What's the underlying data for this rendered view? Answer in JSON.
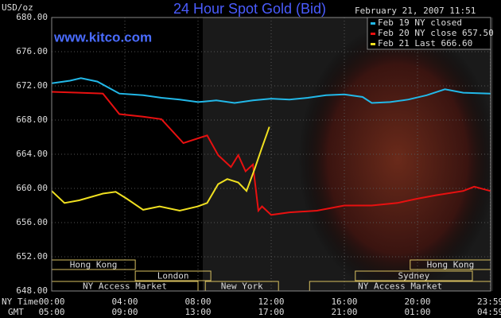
{
  "chart_data": {
    "type": "line",
    "title": "24 Hour Spot Gold (Bid)",
    "subtitle": "February 21, 2007 11:51",
    "y_label": "USD/oz",
    "watermark": "www.kitco.com",
    "x_label": "NY Time",
    "x2_label": "GMT",
    "xlim": [
      0,
      24
    ],
    "ylim": [
      648,
      680
    ],
    "grid": true,
    "legend": "top-right",
    "yticks": [
      {
        "value": 648,
        "label": "648.00"
      },
      {
        "value": 652,
        "label": "652.00"
      },
      {
        "value": 656,
        "label": "656.00"
      },
      {
        "value": 660,
        "label": "660.00"
      },
      {
        "value": 664,
        "label": "664.00"
      },
      {
        "value": 668,
        "label": "668.00"
      },
      {
        "value": 672,
        "label": "672.00"
      },
      {
        "value": 676,
        "label": "676.00"
      },
      {
        "value": 680,
        "label": "680.00"
      }
    ],
    "xticks": [
      {
        "value": 0,
        "label": "00:00"
      },
      {
        "value": 4,
        "label": "04:00"
      },
      {
        "value": 8,
        "label": "08:00"
      },
      {
        "value": 12,
        "label": "12:00"
      },
      {
        "value": 16,
        "label": "16:00"
      },
      {
        "value": 20,
        "label": "20:00"
      },
      {
        "value": 23.98,
        "label": "23:59"
      }
    ],
    "x2ticks": [
      {
        "value": 0,
        "label": "05:00"
      },
      {
        "value": 4,
        "label": "09:00"
      },
      {
        "value": 8,
        "label": "13:00"
      },
      {
        "value": 12,
        "label": "17:00"
      },
      {
        "value": 16,
        "label": "21:00"
      },
      {
        "value": 20,
        "label": "01:00"
      },
      {
        "value": 23.98,
        "label": "04:59"
      }
    ],
    "series": [
      {
        "name": "Feb 19 NY closed",
        "color": "#22b8e8",
        "x": [
          0,
          1,
          1.6,
          2.5,
          3.7,
          5,
          6,
          7,
          8,
          9,
          10,
          11,
          12,
          13,
          14,
          15,
          16,
          17,
          17.5,
          18.5,
          19.5,
          20.5,
          21.5,
          22.5,
          23.98
        ],
        "values": [
          672.3,
          672.6,
          672.9,
          672.5,
          671.1,
          670.9,
          670.6,
          670.4,
          670.1,
          670.3,
          670.0,
          670.3,
          670.5,
          670.4,
          670.6,
          670.9,
          671.0,
          670.7,
          670.0,
          670.1,
          670.4,
          670.9,
          671.6,
          671.2,
          671.1
        ]
      },
      {
        "name": "Feb 20 NY close 657.50",
        "color": "#e81010",
        "x": [
          0,
          1.5,
          2.8,
          3.7,
          5,
          6,
          7.2,
          8.5,
          9.1,
          9.8,
          10.2,
          10.6,
          11,
          11.3,
          11.5,
          12,
          13,
          14.5,
          16,
          17.5,
          18.9,
          20,
          21,
          22.5,
          23.1,
          23.98
        ],
        "values": [
          671.3,
          671.2,
          671.1,
          668.7,
          668.4,
          668.1,
          665.3,
          666.2,
          663.9,
          662.5,
          663.9,
          662.0,
          662.8,
          657.4,
          657.9,
          656.9,
          657.2,
          657.4,
          658.0,
          658.0,
          658.3,
          658.8,
          659.2,
          659.7,
          660.2,
          659.7
        ]
      },
      {
        "name": "Feb 21 Last 666.60",
        "color": "#f0e020",
        "x": [
          0,
          0.7,
          1.5,
          2.8,
          3.5,
          4.1,
          5,
          5.9,
          7,
          8,
          8.5,
          9.1,
          9.6,
          10.2,
          10.65,
          11.1,
          11.5,
          11.9
        ],
        "values": [
          659.7,
          658.3,
          658.6,
          659.4,
          659.6,
          658.8,
          657.5,
          657.9,
          657.4,
          657.9,
          658.3,
          660.5,
          661.1,
          660.7,
          659.7,
          662.3,
          664.8,
          667.2
        ]
      }
    ],
    "sessions": [
      {
        "name": "Hong Kong",
        "start": 0,
        "end": 4.57,
        "row": 1
      },
      {
        "name": "Hong Kong",
        "start": 19.6,
        "end": 24,
        "row": 1
      },
      {
        "name": "London",
        "start": 4.57,
        "end": 8.7,
        "row": 2
      },
      {
        "name": "Sydney",
        "start": 16.6,
        "end": 23,
        "row": 2
      },
      {
        "name": "NY Access Market",
        "start": 0,
        "end": 8,
        "row": 3
      },
      {
        "name": "New York",
        "start": 8.4,
        "end": 12.4,
        "row": 3
      },
      {
        "name": "NY Access Market",
        "start": 14.1,
        "end": 24,
        "row": 3
      }
    ]
  }
}
